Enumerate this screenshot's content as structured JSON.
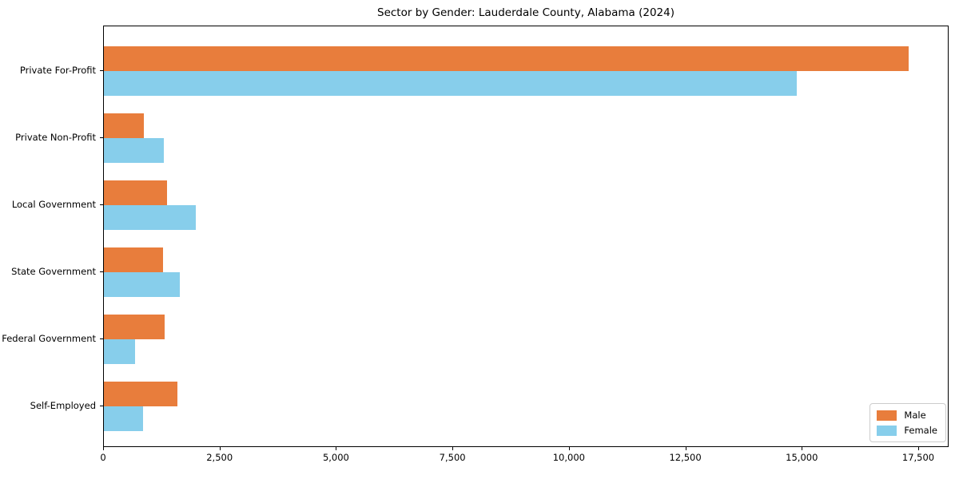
{
  "chart_data": {
    "type": "bar",
    "orientation": "horizontal",
    "title": "Sector by Gender: Lauderdale County, Alabama (2024)",
    "categories": [
      "Private For-Profit",
      "Private Non-Profit",
      "Local Government",
      "State Government",
      "Federal Government",
      "Self-Employed"
    ],
    "series": [
      {
        "name": "Male",
        "color": "#e87d3c",
        "values": [
          17270,
          860,
          1360,
          1270,
          1310,
          1580
        ]
      },
      {
        "name": "Female",
        "color": "#87ceeb",
        "values": [
          14880,
          1290,
          1970,
          1630,
          670,
          840
        ]
      }
    ],
    "xlabel": "",
    "ylabel": "",
    "xlim": [
      0,
      17500
    ],
    "x_ticks": [
      {
        "value": 0,
        "label": "0"
      },
      {
        "value": 2500,
        "label": "2,500"
      },
      {
        "value": 5000,
        "label": "5,000"
      },
      {
        "value": 7500,
        "label": "7,500"
      },
      {
        "value": 10000,
        "label": "10,000"
      },
      {
        "value": 12500,
        "label": "12,500"
      },
      {
        "value": 15000,
        "label": "15,000"
      },
      {
        "value": 17500,
        "label": "17,500"
      }
    ],
    "legend": {
      "position": "lower right",
      "entries": [
        "Male",
        "Female"
      ]
    },
    "grid": false,
    "background": "#ffffff",
    "border_color": "#000000"
  }
}
